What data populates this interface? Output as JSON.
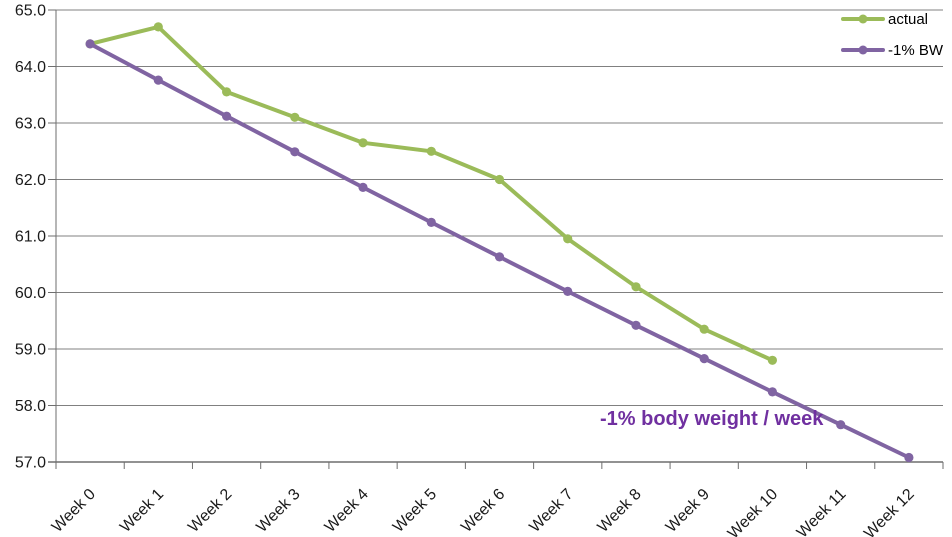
{
  "chart_data": {
    "type": "line",
    "categories": [
      "Week 0",
      "Week 1",
      "Week 2",
      "Week 3",
      "Week 4",
      "Week 5",
      "Week 6",
      "Week 7",
      "Week 8",
      "Week 9",
      "Week 10",
      "Week 11",
      "Week 12"
    ],
    "series": [
      {
        "name": "actual",
        "color": "#9BBB59",
        "values": [
          64.4,
          64.7,
          63.55,
          63.1,
          62.65,
          62.5,
          62.0,
          60.95,
          60.1,
          59.35,
          58.8,
          null,
          null
        ]
      },
      {
        "name": "-1% BW",
        "color": "#8064A2",
        "values": [
          64.4,
          63.76,
          63.12,
          62.49,
          61.86,
          61.24,
          60.63,
          60.02,
          59.42,
          58.83,
          58.24,
          57.66,
          57.08
        ]
      }
    ],
    "ylim": [
      57.0,
      65.0
    ],
    "ytick_step": 1.0,
    "ytick_labels": [
      "65.0",
      "64.0",
      "63.0",
      "62.0",
      "61.0",
      "60.0",
      "59.0",
      "58.0",
      "57.0"
    ],
    "grid": true,
    "legend_position": "top-right",
    "annotation": {
      "text": "-1% body weight / week",
      "color": "#7030A0"
    },
    "gridline_color": "#808080",
    "axis_color": "#6e6e6e",
    "tick_label_color": "#1a1a1a"
  }
}
